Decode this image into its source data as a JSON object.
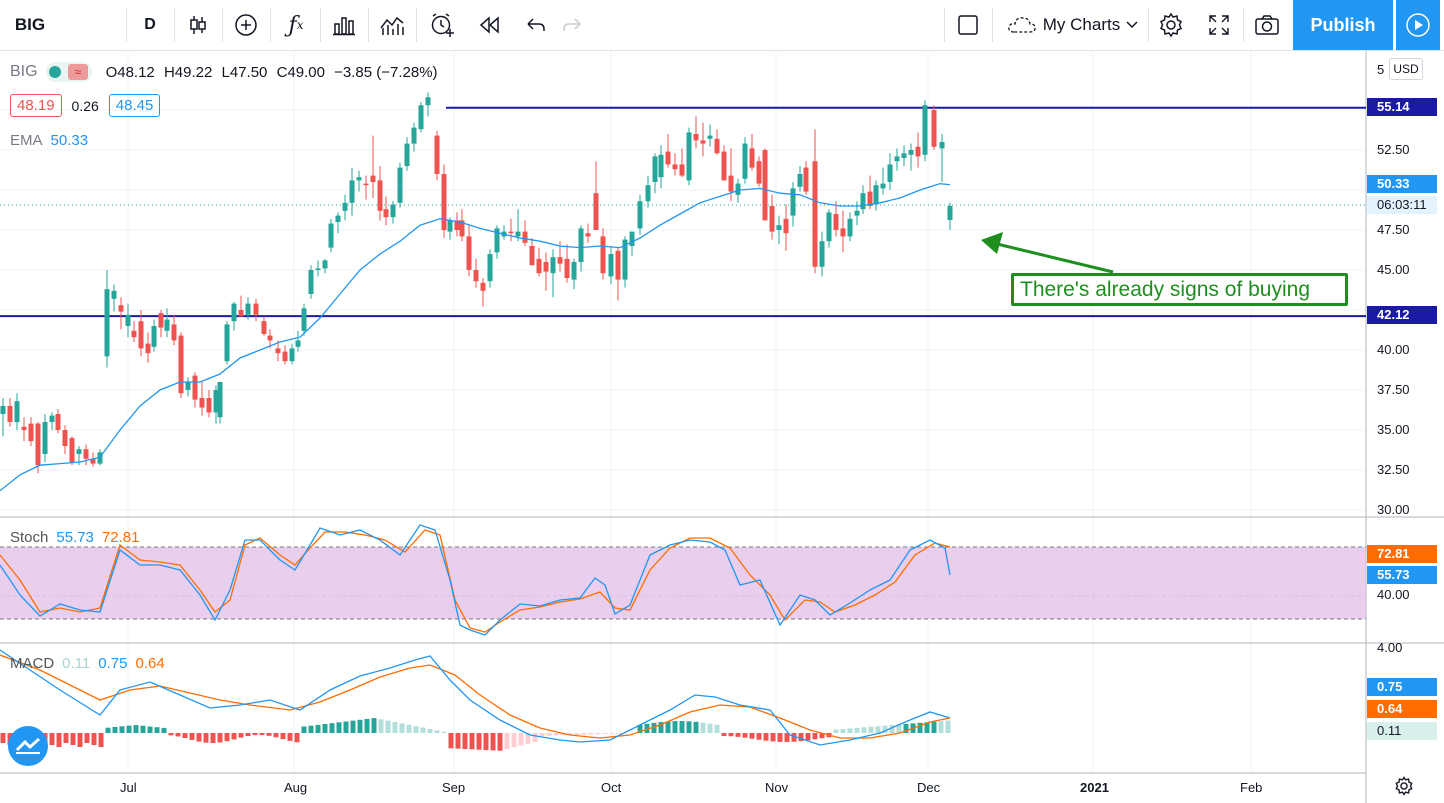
{
  "toolbar": {
    "symbol": "BIG",
    "interval": "D",
    "my_charts": "My Charts",
    "publish": "Publish"
  },
  "legend": {
    "symbol": "BIG",
    "open_label": "O",
    "open": "48.12",
    "high_label": "H",
    "high": "49.22",
    "low_label": "L",
    "low": "47.50",
    "close_label": "C",
    "close": "49.00",
    "change": "−3.85 (−7.28%)",
    "bid": "48.19",
    "spread": "0.26",
    "ask": "48.45"
  },
  "ema": {
    "label": "EMA",
    "value": "50.33"
  },
  "stoch": {
    "label": "Stoch",
    "k": "55.73",
    "d": "72.81"
  },
  "macd": {
    "label": "MACD",
    "hist": "0.11",
    "macd": "0.75",
    "signal": "0.64"
  },
  "price_axis": {
    "currency": "USD",
    "ticks": [
      "5",
      "52.50",
      "47.50",
      "45.00",
      "40.00",
      "37.50",
      "35.00",
      "32.50",
      "30.00"
    ],
    "tags": {
      "resistance": "55.14",
      "ema": "50.33",
      "countdown": "06:03:11",
      "support": "42.12"
    }
  },
  "stoch_axis": {
    "tick": "40.00",
    "d_tag": "72.81",
    "k_tag": "55.73"
  },
  "macd_axis": {
    "tick": "4.00",
    "macd_tag": "0.75",
    "signal_tag": "0.64",
    "hist_tag": "0.11"
  },
  "time_axis": [
    "Jul",
    "Aug",
    "Sep",
    "Oct",
    "Nov",
    "Dec",
    "2021",
    "Feb"
  ],
  "annotation": "There's already signs of buying",
  "colors": {
    "up": "#26a69a",
    "down": "#ef5350",
    "ema": "#2196f3",
    "hline": "#1a1aa6",
    "stoch_band": "#e1bee7",
    "stoch_k": "#2196f3",
    "stoch_d": "#ff6d00",
    "arrow": "#1e8f1e",
    "publish": "#2196f3"
  }
}
